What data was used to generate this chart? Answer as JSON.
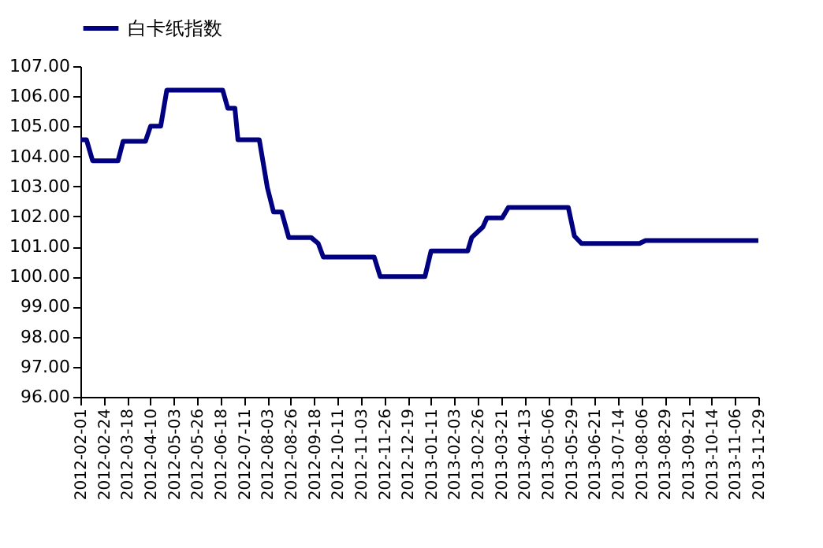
{
  "chart_data": {
    "type": "line",
    "x": [
      "2012-02-01",
      "2012-02-07",
      "2012-02-13",
      "2012-03-09",
      "2012-03-14",
      "2012-04-05",
      "2012-04-10",
      "2012-04-20",
      "2012-04-26",
      "2012-06-20",
      "2012-06-25",
      "2012-07-02",
      "2012-07-05",
      "2012-07-26",
      "2012-08-03",
      "2012-08-09",
      "2012-08-17",
      "2012-08-24",
      "2012-09-15",
      "2012-09-22",
      "2012-09-27",
      "2012-11-16",
      "2012-11-22",
      "2013-01-05",
      "2013-01-11",
      "2013-02-16",
      "2013-02-20",
      "2013-03-03",
      "2013-03-07",
      "2013-03-22",
      "2013-03-28",
      "2013-05-26",
      "2013-06-01",
      "2013-06-08",
      "2013-08-04",
      "2013-08-10",
      "2013-11-29"
    ],
    "series": [
      {
        "name": "白卡纸指数",
        "color": "#000080",
        "values": [
          104.55,
          104.55,
          103.85,
          103.85,
          104.5,
          104.5,
          105.0,
          105.0,
          106.2,
          106.2,
          105.6,
          105.6,
          104.55,
          104.55,
          102.95,
          102.15,
          102.15,
          101.3,
          101.3,
          101.1,
          100.65,
          100.65,
          100.0,
          100.0,
          100.85,
          100.85,
          101.3,
          101.65,
          101.95,
          101.95,
          102.3,
          102.3,
          101.35,
          101.1,
          101.1,
          101.2,
          101.2
        ]
      }
    ],
    "xlim": [
      "2012-02-01",
      "2013-11-29"
    ],
    "xticks": [
      "2012-02-01",
      "2012-02-24",
      "2012-03-18",
      "2012-04-10",
      "2012-05-03",
      "2012-05-26",
      "2012-06-18",
      "2012-07-11",
      "2012-08-03",
      "2012-08-26",
      "2012-09-18",
      "2012-10-11",
      "2012-11-03",
      "2012-11-26",
      "2012-12-19",
      "2013-01-11",
      "2013-02-03",
      "2013-02-26",
      "2013-03-21",
      "2013-04-13",
      "2013-05-06",
      "2013-05-29",
      "2013-06-21",
      "2013-07-14",
      "2013-08-06",
      "2013-08-29",
      "2013-09-21",
      "2013-10-14",
      "2013-11-06",
      "2013-11-29"
    ],
    "ylim": [
      96,
      107
    ],
    "yticks": [
      {
        "value": 96,
        "label": "96.00"
      },
      {
        "value": 97,
        "label": "97.00"
      },
      {
        "value": 98,
        "label": "98.00"
      },
      {
        "value": 99,
        "label": "99.00"
      },
      {
        "value": 100,
        "label": "100.00"
      },
      {
        "value": 101,
        "label": "101.00"
      },
      {
        "value": 102,
        "label": "102.00"
      },
      {
        "value": 103,
        "label": "103.00"
      },
      {
        "value": 104,
        "label": "104.00"
      },
      {
        "value": 105,
        "label": "105.00"
      },
      {
        "value": 106,
        "label": "106.00"
      },
      {
        "value": 107,
        "label": "107.00"
      }
    ],
    "legend": "top",
    "grid": false,
    "line_style": "solid"
  }
}
